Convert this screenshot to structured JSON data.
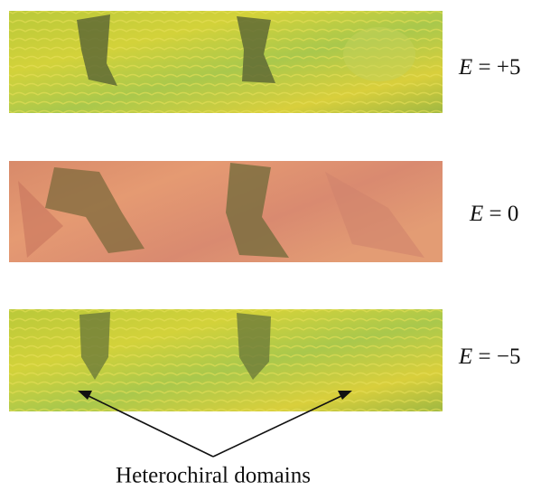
{
  "panels": [
    {
      "variable": "E",
      "relation": "= +5"
    },
    {
      "variable": "E",
      "relation": "= 0"
    },
    {
      "variable": "E",
      "relation": "= −5"
    }
  ],
  "annotation": "Heterochiral domains"
}
